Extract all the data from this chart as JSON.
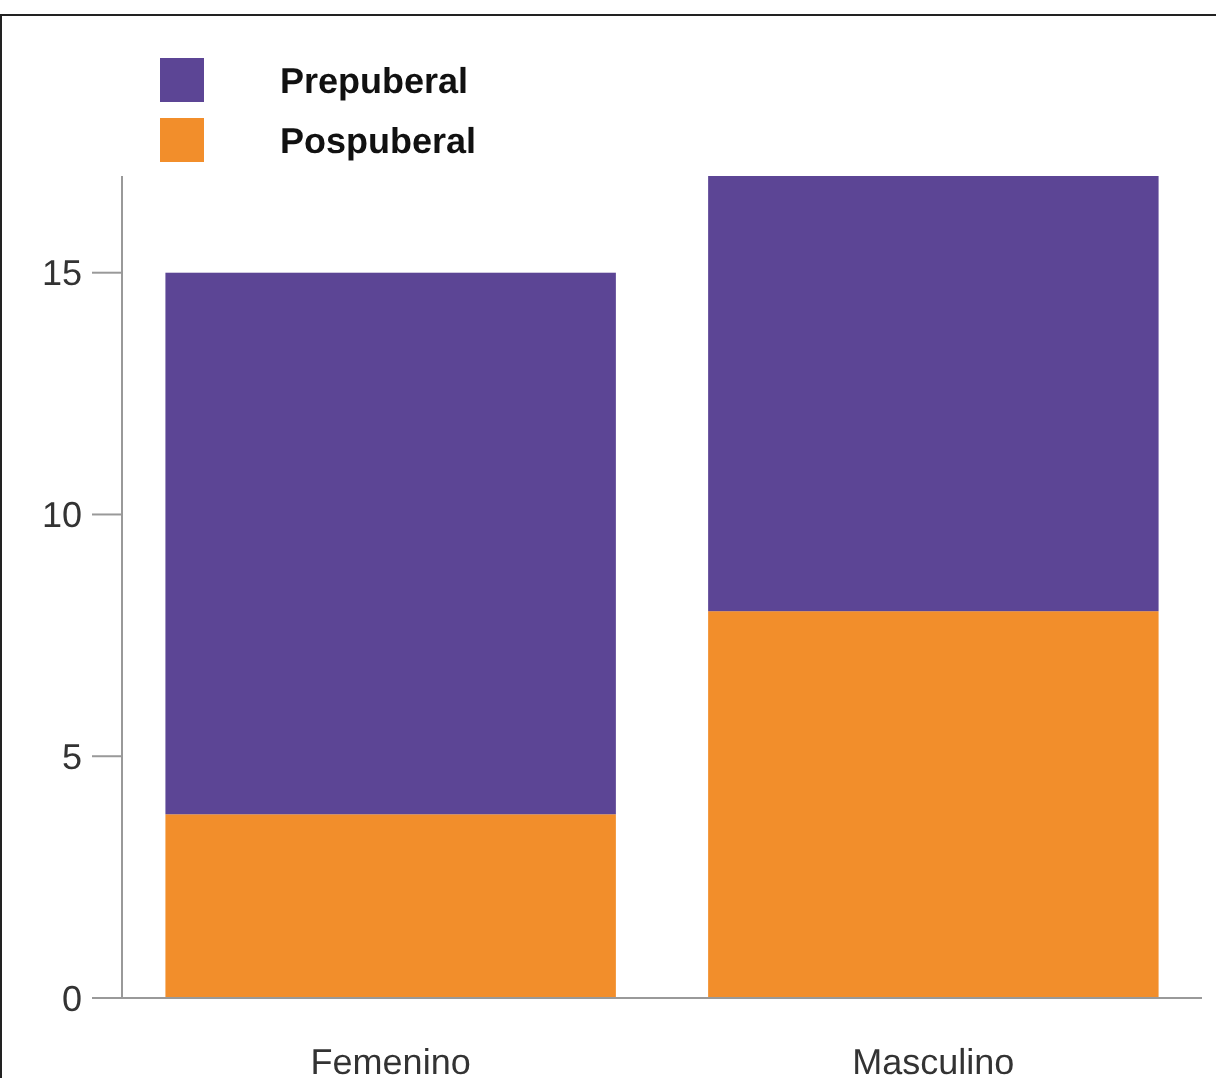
{
  "chart_data": {
    "type": "bar",
    "stacked": true,
    "categories": [
      "Femenino",
      "Masculino"
    ],
    "series": [
      {
        "name": "Pospuberal",
        "color": "#f28e2b",
        "values": [
          3.8,
          8
        ]
      },
      {
        "name": "Prepuberal",
        "color": "#5c4595",
        "values": [
          11.2,
          9
        ]
      }
    ],
    "ylim": [
      0,
      17
    ],
    "yticks": [
      0,
      5,
      10,
      15
    ],
    "grid": false,
    "legend": "top left"
  }
}
